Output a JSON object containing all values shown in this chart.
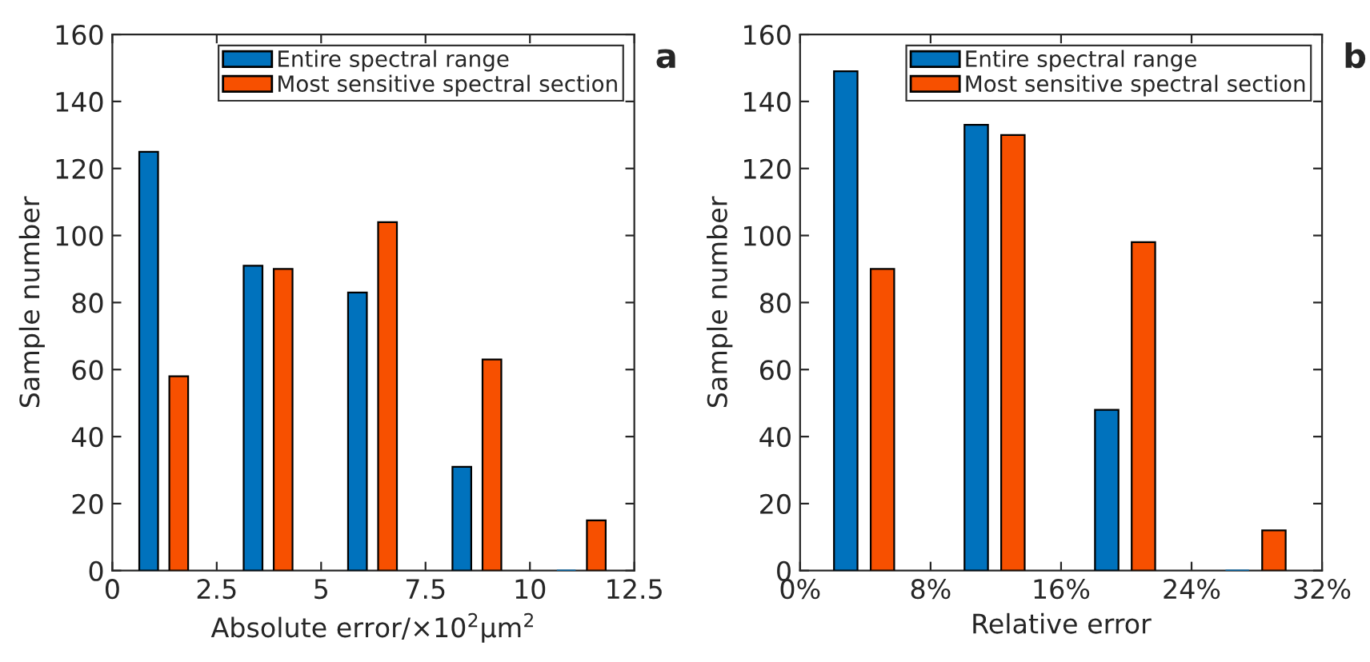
{
  "chart_data": [
    {
      "type": "bar",
      "xlabel": "Absolute error/×10$^{2}$μm$^{2}$",
      "ylabel": "Sample number",
      "annotations": [
        "a"
      ],
      "legend": "top right",
      "grid": false,
      "xlim": [
        0,
        12.5
      ],
      "xticks": [
        0,
        2.5,
        5,
        7.5,
        10,
        12.5
      ],
      "ylim": [
        0,
        160
      ],
      "yticks": [
        0,
        20,
        40,
        60,
        80,
        100,
        120,
        140,
        160
      ],
      "series": [
        {
          "name": "Entire spectral range",
          "color": "#0072bd",
          "x": [
            0.87,
            3.37,
            5.87,
            8.37,
            10.87
          ],
          "values": [
            125,
            91,
            83,
            31,
            0
          ]
        },
        {
          "name": "Most sensitive spectral section",
          "color": "#f75000",
          "x": [
            1.59,
            4.09,
            6.59,
            9.09,
            11.59
          ],
          "values": [
            58,
            90,
            104,
            63,
            15
          ]
        }
      ]
    },
    {
      "type": "bar",
      "xlabel": "Relative error",
      "ylabel": "Sample number",
      "annotations": [
        "b"
      ],
      "legend": "top right",
      "grid": false,
      "xlim": [
        0,
        32
      ],
      "xticks": [
        {
          "value": 0,
          "label": "0%"
        },
        {
          "value": 8,
          "label": "8%"
        },
        {
          "value": 16,
          "label": "16%"
        },
        {
          "value": 24,
          "label": "24%"
        },
        {
          "value": 32,
          "label": "32%"
        }
      ],
      "ylim": [
        0,
        160
      ],
      "yticks": [
        0,
        20,
        40,
        60,
        80,
        100,
        120,
        140,
        160
      ],
      "series": [
        {
          "name": "Entire spectral range",
          "color": "#0072bd",
          "x": [
            2.8,
            10.8,
            18.8,
            26.8
          ],
          "values": [
            149,
            133,
            48,
            0
          ]
        },
        {
          "name": "Most sensitive spectral section",
          "color": "#f75000",
          "x": [
            5.05,
            13.05,
            21.05,
            29.05
          ],
          "values": [
            90,
            130,
            98,
            12
          ]
        }
      ]
    }
  ]
}
